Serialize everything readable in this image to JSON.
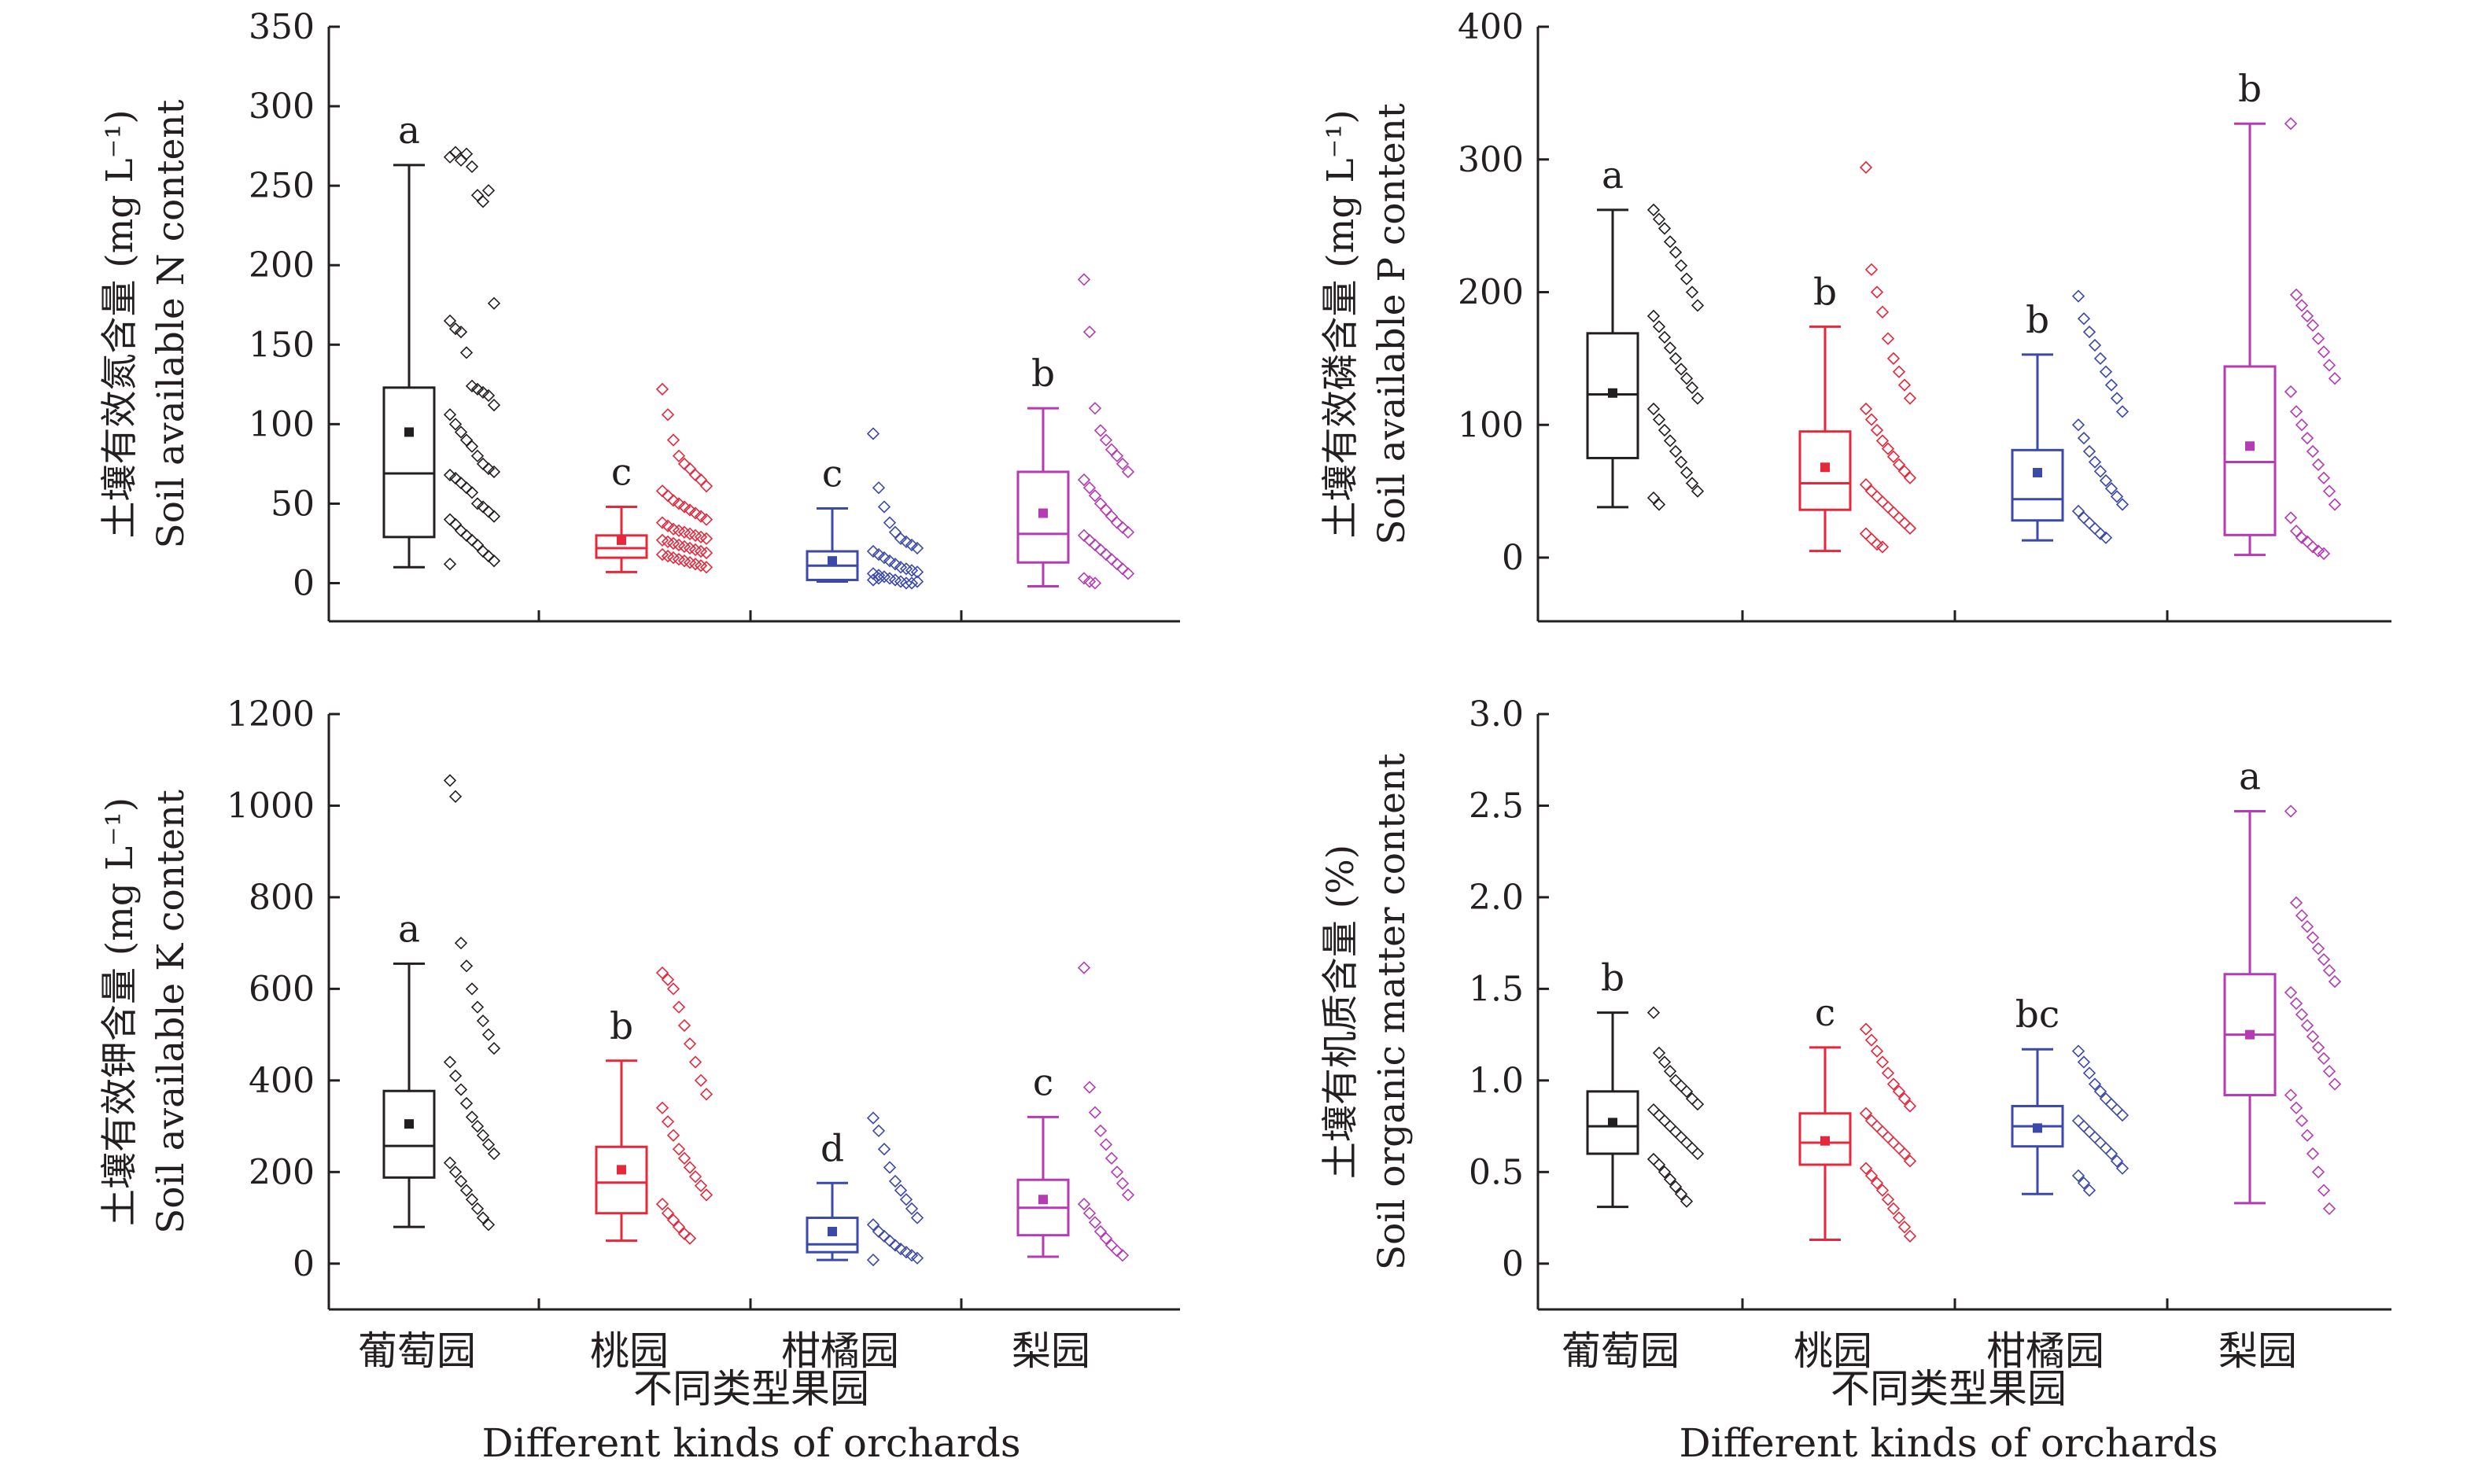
{
  "figure": {
    "xlabel_cn": "不同类型果园",
    "xlabel_en": "Different kinds of orchards"
  },
  "colors": {
    "葡萄园": "#231f20",
    "桃园": "#e5283c",
    "柑橘园": "#3b49a8",
    "梨园": "#b53bb2",
    "axis": "#231f20"
  },
  "chart_data": [
    {
      "id": "N",
      "type": "box",
      "ylabel_cn": "土壤有效氮含量 (mg L⁻¹)",
      "ylabel_en": "Soil available N content",
      "categories": [
        "葡萄园",
        "桃园",
        "柑橘园",
        "梨园"
      ],
      "yticks": [
        0,
        50,
        100,
        150,
        200,
        250,
        300,
        350
      ],
      "ylim": [
        -24,
        350
      ],
      "boxes": [
        {
          "min": 10,
          "q1": 29,
          "median": 69,
          "q3": 123,
          "max": 263,
          "mean": 95,
          "letter": "a",
          "points": [
            268,
            271,
            266,
            270,
            262,
            244,
            240,
            247,
            176,
            165,
            160,
            158,
            145,
            124,
            122,
            120,
            118,
            112,
            106,
            100,
            95,
            90,
            86,
            80,
            75,
            72,
            70,
            68,
            66,
            63,
            60,
            57,
            50,
            48,
            45,
            42,
            40,
            37,
            33,
            30,
            27,
            24,
            20,
            17,
            14,
            12
          ]
        },
        {
          "min": 7,
          "q1": 16,
          "median": 22,
          "q3": 30,
          "max": 48,
          "mean": 27,
          "letter": "c",
          "points": [
            122,
            106,
            90,
            80,
            75,
            72,
            68,
            65,
            61,
            58,
            55,
            52,
            50,
            48,
            46,
            44,
            42,
            40,
            38,
            36,
            34,
            33,
            32,
            31,
            30,
            29,
            28,
            27,
            26,
            25,
            24,
            23,
            22,
            21,
            20,
            19,
            18,
            17,
            16,
            15,
            14,
            13,
            12,
            11,
            10
          ]
        },
        {
          "min": 1,
          "q1": 2,
          "median": 11,
          "q3": 20,
          "max": 47,
          "mean": 14,
          "letter": "c",
          "points": [
            94,
            60,
            48,
            38,
            32,
            28,
            26,
            24,
            22,
            20,
            18,
            16,
            14,
            12,
            10,
            9,
            8,
            7,
            6,
            5,
            4,
            3,
            2,
            1,
            0,
            0,
            1,
            2,
            3
          ]
        },
        {
          "min": -2,
          "q1": 13,
          "median": 31,
          "q3": 70,
          "max": 110,
          "mean": 44,
          "letter": "b",
          "points": [
            191,
            158,
            110,
            96,
            90,
            84,
            80,
            75,
            70,
            65,
            60,
            55,
            50,
            46,
            42,
            38,
            35,
            32,
            30,
            27,
            24,
            21,
            18,
            15,
            12,
            9,
            6,
            3,
            1,
            0
          ]
        }
      ]
    },
    {
      "id": "P",
      "type": "box",
      "ylabel_cn": "土壤有效磷含量 (mg L⁻¹)",
      "ylabel_en": "Soil available P content",
      "categories": [
        "葡萄园",
        "桃园",
        "柑橘园",
        "梨园"
      ],
      "yticks": [
        0,
        100,
        200,
        300,
        400
      ],
      "ylim": [
        -48,
        400
      ],
      "boxes": [
        {
          "min": 38,
          "q1": 75,
          "median": 123,
          "q3": 169,
          "max": 262,
          "mean": 124,
          "letter": "a",
          "points": [
            262,
            255,
            248,
            238,
            230,
            220,
            210,
            200,
            190,
            182,
            174,
            166,
            158,
            150,
            142,
            135,
            128,
            120,
            112,
            104,
            96,
            88,
            80,
            72,
            64,
            56,
            50,
            45,
            40
          ]
        },
        {
          "min": 5,
          "q1": 36,
          "median": 56,
          "q3": 95,
          "max": 174,
          "mean": 68,
          "letter": "b",
          "points": [
            294,
            217,
            200,
            185,
            165,
            150,
            140,
            130,
            120,
            112,
            104,
            96,
            88,
            82,
            76,
            70,
            65,
            60,
            55,
            50,
            46,
            42,
            38,
            34,
            30,
            26,
            22,
            18,
            14,
            10,
            8
          ]
        },
        {
          "min": 13,
          "q1": 28,
          "median": 44,
          "q3": 81,
          "max": 153,
          "mean": 64,
          "letter": "b",
          "points": [
            197,
            180,
            170,
            160,
            150,
            140,
            130,
            120,
            110,
            100,
            90,
            80,
            72,
            65,
            58,
            52,
            46,
            40,
            35,
            30,
            26,
            22,
            18,
            15
          ]
        },
        {
          "min": 2,
          "q1": 17,
          "median": 72,
          "q3": 144,
          "max": 327,
          "mean": 84,
          "letter": "b",
          "points": [
            327,
            198,
            190,
            182,
            175,
            165,
            155,
            145,
            135,
            125,
            110,
            100,
            90,
            80,
            70,
            60,
            50,
            40,
            30,
            20,
            15,
            12,
            8,
            5,
            3
          ]
        }
      ]
    },
    {
      "id": "K",
      "type": "box",
      "ylabel_cn": "土壤有效钾含量 (mg L⁻¹)",
      "ylabel_en": "Soil available K content",
      "categories": [
        "葡萄园",
        "桃园",
        "柑橘园",
        "梨园"
      ],
      "yticks": [
        0,
        200,
        400,
        600,
        800,
        1000,
        1200
      ],
      "ylim": [
        -100,
        1200
      ],
      "boxes": [
        {
          "min": 80,
          "q1": 188,
          "median": 257,
          "q3": 377,
          "max": 655,
          "mean": 305,
          "letter": "a",
          "points": [
            1055,
            1020,
            700,
            650,
            600,
            560,
            530,
            500,
            470,
            440,
            410,
            380,
            350,
            320,
            300,
            280,
            260,
            240,
            220,
            200,
            180,
            160,
            140,
            120,
            100,
            85
          ]
        },
        {
          "min": 50,
          "q1": 110,
          "median": 177,
          "q3": 255,
          "max": 443,
          "mean": 205,
          "letter": "b",
          "points": [
            635,
            620,
            600,
            560,
            520,
            480,
            440,
            400,
            370,
            340,
            310,
            280,
            250,
            230,
            210,
            190,
            170,
            150,
            130,
            110,
            95,
            80,
            65,
            55
          ]
        },
        {
          "min": 8,
          "q1": 25,
          "median": 42,
          "q3": 100,
          "max": 176,
          "mean": 70,
          "letter": "d",
          "points": [
            318,
            290,
            250,
            210,
            180,
            160,
            140,
            120,
            100,
            85,
            70,
            60,
            50,
            40,
            32,
            25,
            18,
            12,
            8
          ]
        },
        {
          "min": 15,
          "q1": 62,
          "median": 122,
          "q3": 183,
          "max": 320,
          "mean": 140,
          "letter": "c",
          "points": [
            646,
            385,
            330,
            290,
            260,
            230,
            200,
            175,
            150,
            130,
            110,
            90,
            70,
            55,
            40,
            28,
            18
          ]
        }
      ]
    },
    {
      "id": "OM",
      "type": "box",
      "ylabel_cn": "土壤有机质含量 (%)",
      "ylabel_en": "Soil organic matter content",
      "categories": [
        "葡萄园",
        "桃园",
        "柑橘园",
        "梨园"
      ],
      "yticks": [
        0,
        0.5,
        1.0,
        1.5,
        2.0,
        2.5,
        3.0
      ],
      "yticklabels": [
        "0",
        "0.5",
        "1.0",
        "1.5",
        "2.0",
        "2.5",
        "3.0"
      ],
      "ylim": [
        -0.25,
        3.0
      ],
      "boxes": [
        {
          "min": 0.31,
          "q1": 0.6,
          "median": 0.75,
          "q3": 0.94,
          "max": 1.37,
          "mean": 0.77,
          "letter": "b",
          "points": [
            1.37,
            1.15,
            1.1,
            1.05,
            1.0,
            0.97,
            0.94,
            0.9,
            0.87,
            0.84,
            0.81,
            0.78,
            0.75,
            0.72,
            0.69,
            0.66,
            0.63,
            0.6,
            0.57,
            0.54,
            0.5,
            0.46,
            0.42,
            0.38,
            0.34
          ]
        },
        {
          "min": 0.13,
          "q1": 0.54,
          "median": 0.66,
          "q3": 0.82,
          "max": 1.18,
          "mean": 0.67,
          "letter": "c",
          "points": [
            1.28,
            1.22,
            1.16,
            1.1,
            1.04,
            0.98,
            0.94,
            0.9,
            0.86,
            0.82,
            0.78,
            0.75,
            0.72,
            0.69,
            0.66,
            0.63,
            0.6,
            0.56,
            0.52,
            0.48,
            0.44,
            0.4,
            0.35,
            0.3,
            0.25,
            0.2,
            0.15
          ]
        },
        {
          "min": 0.38,
          "q1": 0.64,
          "median": 0.75,
          "q3": 0.86,
          "max": 1.17,
          "mean": 0.74,
          "letter": "bc",
          "points": [
            1.16,
            1.1,
            1.04,
            0.98,
            0.94,
            0.9,
            0.87,
            0.84,
            0.81,
            0.78,
            0.75,
            0.72,
            0.69,
            0.66,
            0.63,
            0.6,
            0.56,
            0.52,
            0.48,
            0.44,
            0.4
          ]
        },
        {
          "min": 0.33,
          "q1": 0.92,
          "median": 1.25,
          "q3": 1.58,
          "max": 2.47,
          "mean": 1.25,
          "letter": "a",
          "points": [
            2.47,
            1.97,
            1.9,
            1.84,
            1.78,
            1.72,
            1.66,
            1.6,
            1.54,
            1.48,
            1.42,
            1.36,
            1.3,
            1.24,
            1.18,
            1.12,
            1.05,
            0.98,
            0.92,
            0.85,
            0.78,
            0.7,
            0.6,
            0.5,
            0.4,
            0.3
          ]
        }
      ]
    }
  ]
}
